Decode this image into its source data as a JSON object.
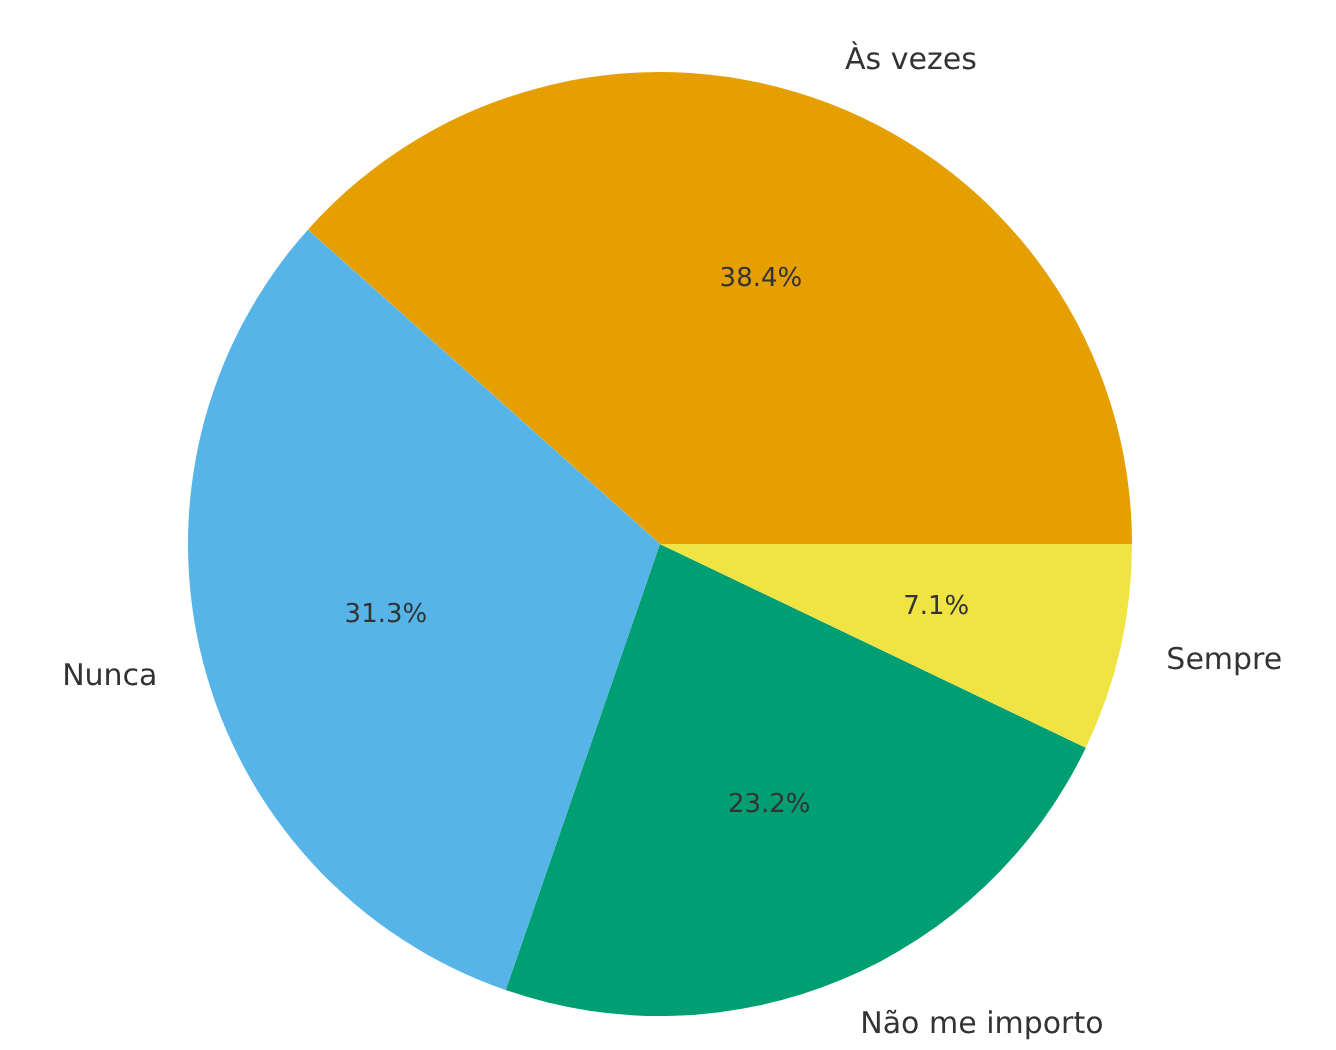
{
  "chart_data": {
    "type": "pie",
    "categories": [
      "Às vezes",
      "Nunca",
      "Não me importo",
      "Sempre"
    ],
    "values": [
      38.4,
      31.3,
      23.2,
      7.1
    ],
    "value_labels": [
      "38.4%",
      "31.3%",
      "23.2%",
      "7.1%"
    ],
    "colors": [
      "#e69f00",
      "#56b4e9",
      "#009e73",
      "#f0e442"
    ]
  }
}
